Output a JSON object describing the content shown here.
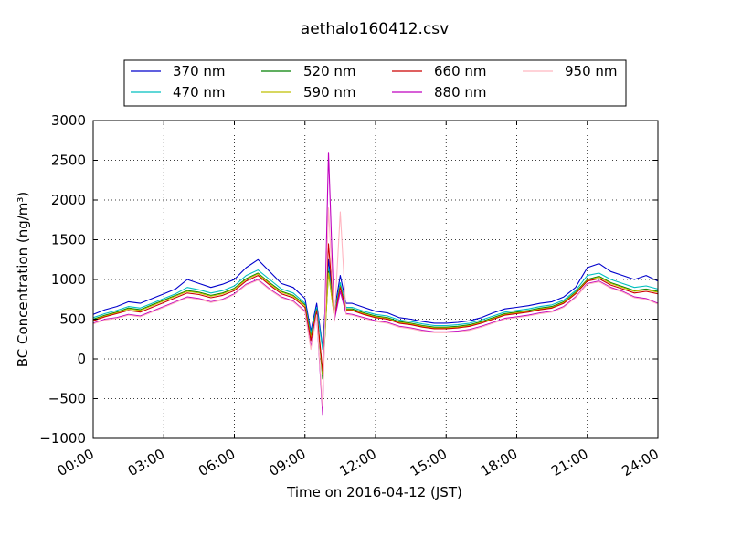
{
  "chart_data": {
    "type": "line",
    "title": "aethalo160412.csv",
    "xlabel": "Time on 2016-04-12 (JST)",
    "ylabel": "BC Concentration (ng/m³)",
    "xlim": [
      0,
      24
    ],
    "ylim": [
      -1000,
      3000
    ],
    "x_ticks": [
      0,
      3,
      6,
      9,
      12,
      15,
      18,
      21,
      24
    ],
    "x_tick_labels": [
      "00:00",
      "03:00",
      "06:00",
      "09:00",
      "12:00",
      "15:00",
      "18:00",
      "21:00",
      "24:00"
    ],
    "y_ticks": [
      -1000,
      -500,
      0,
      500,
      1000,
      1500,
      2000,
      2500,
      3000
    ],
    "y_tick_labels": [
      "−1000",
      "−500",
      "0",
      "500",
      "1000",
      "1500",
      "2000",
      "2500",
      "3000"
    ],
    "grid": true,
    "legend_position": "top-center",
    "x": [
      0,
      0.5,
      1,
      1.5,
      2,
      2.5,
      3,
      3.5,
      4,
      4.5,
      5,
      5.5,
      6,
      6.5,
      7,
      7.5,
      8,
      8.5,
      9,
      9.25,
      9.5,
      9.75,
      10,
      10.25,
      10.5,
      10.75,
      11,
      11.5,
      12,
      12.5,
      13,
      13.5,
      14,
      14.5,
      15,
      15.5,
      16,
      16.5,
      17,
      17.5,
      18,
      18.5,
      19,
      19.5,
      20,
      20.5,
      21,
      21.5,
      22,
      22.5,
      23,
      23.5,
      24
    ],
    "series": [
      {
        "name": "370 nm",
        "color": "#0000cc",
        "values": [
          560,
          620,
          660,
          720,
          700,
          760,
          820,
          880,
          1000,
          950,
          900,
          940,
          1000,
          1150,
          1250,
          1100,
          950,
          900,
          760,
          350,
          700,
          150,
          1250,
          600,
          1050,
          700,
          700,
          650,
          600,
          580,
          520,
          500,
          470,
          450,
          450,
          460,
          480,
          520,
          580,
          630,
          650,
          670,
          700,
          720,
          780,
          900,
          1150,
          1200,
          1100,
          1050,
          1000,
          1050,
          980
        ]
      },
      {
        "name": "470 nm",
        "color": "#00bfbf",
        "values": [
          520,
          570,
          610,
          660,
          640,
          700,
          760,
          820,
          900,
          870,
          830,
          860,
          920,
          1050,
          1120,
          1000,
          880,
          830,
          700,
          320,
          650,
          120,
          1150,
          560,
          960,
          650,
          650,
          600,
          560,
          540,
          490,
          470,
          440,
          420,
          420,
          430,
          450,
          490,
          540,
          590,
          610,
          630,
          660,
          680,
          740,
          860,
          1050,
          1080,
          1000,
          950,
          900,
          920,
          880
        ]
      },
      {
        "name": "520 nm",
        "color": "#007f00",
        "values": [
          500,
          550,
          590,
          640,
          620,
          680,
          740,
          800,
          860,
          840,
          800,
          830,
          890,
          1010,
          1080,
          960,
          850,
          800,
          680,
          280,
          620,
          -250,
          1100,
          540,
          920,
          630,
          630,
          580,
          540,
          520,
          470,
          450,
          420,
          400,
          400,
          410,
          430,
          470,
          520,
          570,
          590,
          610,
          640,
          660,
          720,
          840,
          1000,
          1040,
          960,
          910,
          860,
          880,
          850
        ]
      },
      {
        "name": "590 nm",
        "color": "#bfbf00",
        "values": [
          490,
          540,
          580,
          630,
          610,
          670,
          730,
          790,
          850,
          830,
          790,
          820,
          880,
          1000,
          1070,
          950,
          840,
          790,
          670,
          260,
          610,
          -200,
          1080,
          530,
          910,
          620,
          620,
          570,
          530,
          510,
          460,
          440,
          410,
          390,
          390,
          400,
          420,
          460,
          510,
          560,
          580,
          600,
          630,
          650,
          710,
          830,
          990,
          1030,
          950,
          900,
          850,
          870,
          840
        ]
      },
      {
        "name": "660 nm",
        "color": "#cc0000",
        "values": [
          480,
          530,
          570,
          610,
          590,
          650,
          710,
          770,
          830,
          810,
          770,
          800,
          860,
          980,
          1050,
          930,
          820,
          770,
          650,
          230,
          600,
          -150,
          1450,
          520,
          900,
          610,
          610,
          560,
          520,
          500,
          450,
          430,
          400,
          380,
          380,
          390,
          410,
          450,
          500,
          550,
          570,
          590,
          620,
          640,
          700,
          820,
          980,
          1010,
          930,
          880,
          830,
          850,
          820
        ]
      },
      {
        "name": "880 nm",
        "color": "#bf00bf",
        "values": [
          450,
          500,
          520,
          560,
          540,
          600,
          660,
          720,
          780,
          760,
          720,
          750,
          820,
          940,
          1000,
          880,
          780,
          730,
          600,
          150,
          560,
          -700,
          2600,
          480,
          850,
          570,
          560,
          520,
          480,
          460,
          410,
          390,
          360,
          340,
          340,
          350,
          370,
          410,
          460,
          510,
          530,
          550,
          580,
          600,
          660,
          780,
          950,
          980,
          900,
          850,
          780,
          760,
          700
        ]
      },
      {
        "name": "950 nm",
        "color": "#ffb6c1",
        "values": [
          440,
          490,
          510,
          550,
          530,
          590,
          650,
          710,
          770,
          750,
          710,
          740,
          810,
          930,
          990,
          870,
          770,
          720,
          590,
          120,
          550,
          -600,
          1900,
          470,
          1850,
          560,
          550,
          510,
          470,
          450,
          400,
          380,
          350,
          330,
          330,
          340,
          360,
          400,
          450,
          500,
          520,
          540,
          570,
          590,
          650,
          770,
          940,
          970,
          890,
          840,
          770,
          750,
          690
        ]
      }
    ]
  }
}
